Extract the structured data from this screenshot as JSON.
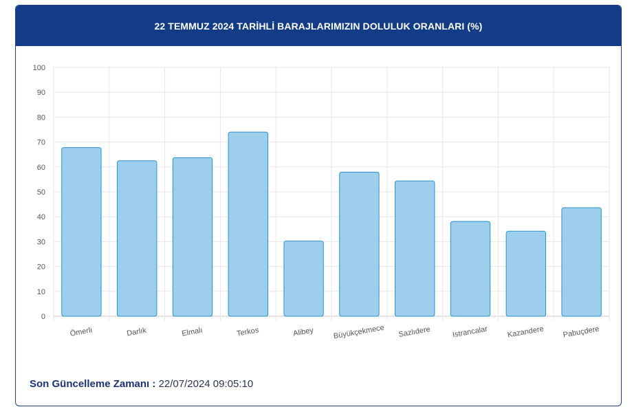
{
  "chart_data": {
    "type": "bar",
    "title": "22 TEMMUZ 2024 TARİHLİ BARAJLARIMIZIN DOLULUK ORANLARI (%)",
    "categories": [
      "Ömerli",
      "Darlık",
      "Elmalı",
      "Terkos",
      "Alibey",
      "Büyükçekmece",
      "Sazlıdere",
      "Istrancalar",
      "Kazandere",
      "Pabuçdere"
    ],
    "values": [
      67.8,
      62.5,
      63.7,
      74.0,
      30.2,
      57.9,
      54.4,
      38.1,
      34.2,
      43.6
    ],
    "y_ticks": [
      "0",
      "10",
      "20",
      "30",
      "40",
      "50",
      "60",
      "70",
      "80",
      "90",
      "100"
    ],
    "ylim": [
      0,
      100
    ],
    "grid": true,
    "bar_fill": "#9dcfec",
    "bar_stroke": "#2b8fcb"
  },
  "footer": {
    "label": "Son Güncelleme Zamanı :",
    "value": "22/07/2024 09:05:10"
  },
  "colors": {
    "header_bg": "#123d86",
    "header_text": "#ffffff"
  }
}
